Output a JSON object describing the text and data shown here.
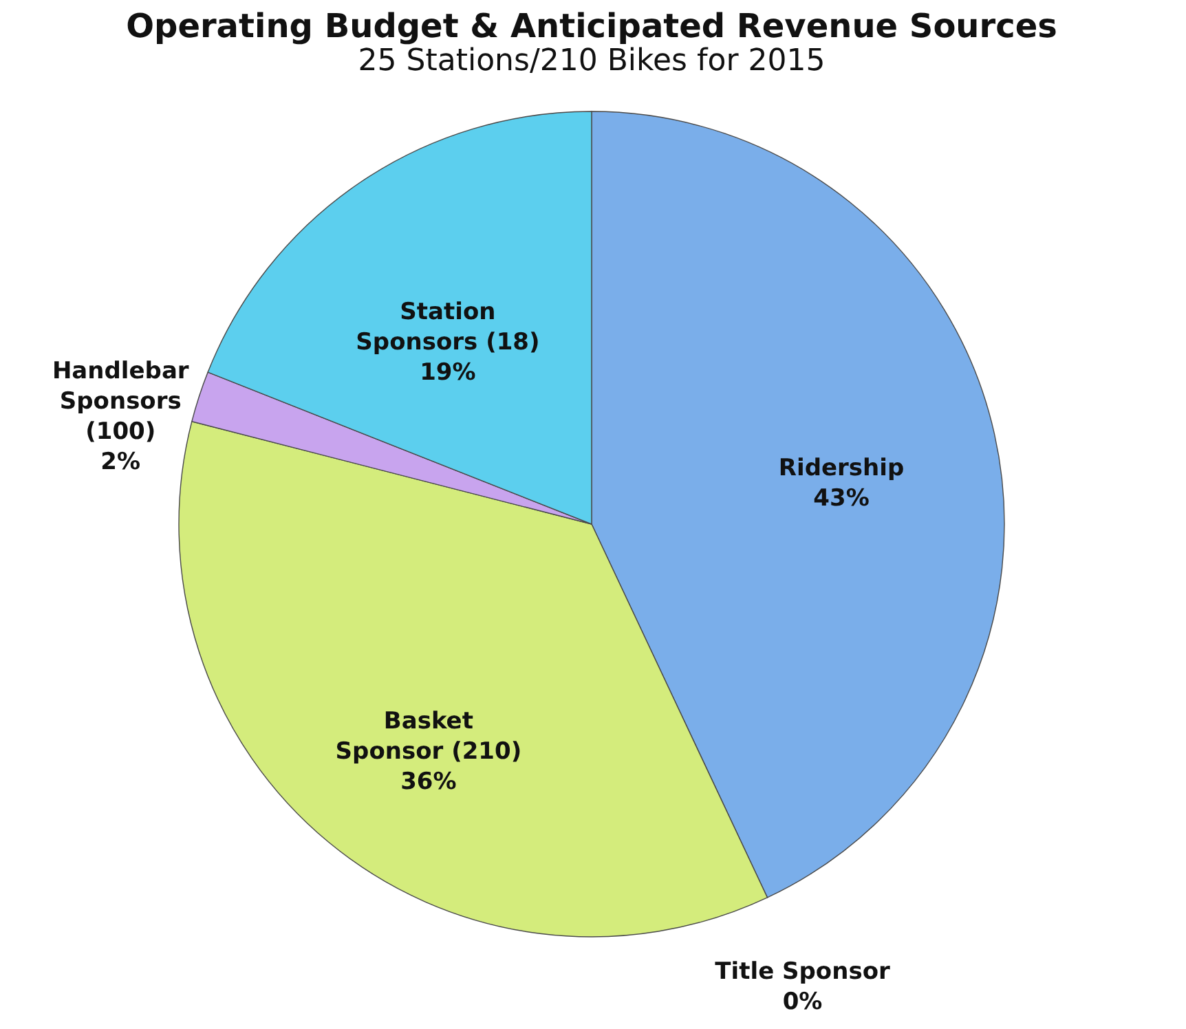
{
  "chart_data": {
    "type": "pie",
    "title": "Operating Budget & Anticipated Revenue Sources",
    "subtitle": "25 Stations/210 Bikes for 2015",
    "categories": [
      "Ridership",
      "Title Sponsor",
      "Basket Sponsor (210)",
      "Handlebar Sponsors (100)",
      "Station Sponsors (18)"
    ],
    "values": [
      43,
      0,
      36,
      2,
      19
    ],
    "colors": [
      "#7aaeea",
      "#d9534f",
      "#d4ec7c",
      "#c8a4ee",
      "#5ccfee"
    ],
    "value_labels": [
      "43%",
      "0%",
      "36%",
      "2%",
      "19%"
    ]
  }
}
